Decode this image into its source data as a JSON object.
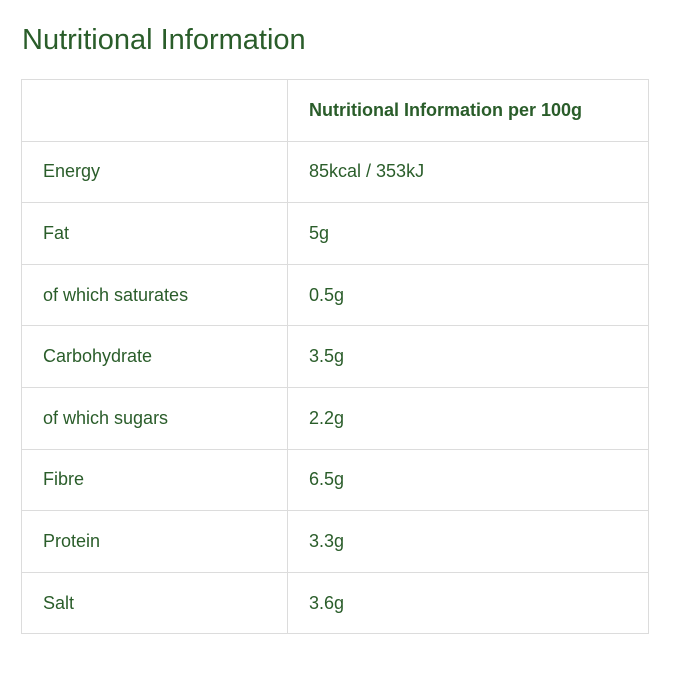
{
  "header": {
    "title": "Nutritional Information"
  },
  "table": {
    "column_header": "Nutritional Information per 100g",
    "rows": [
      [
        "Energy",
        "85kcal / 353kJ"
      ],
      [
        "Fat",
        "5g"
      ],
      [
        "of which saturates",
        "0.5g"
      ],
      [
        "Carbohydrate",
        "3.5g"
      ],
      [
        "of which sugars",
        "2.2g"
      ],
      [
        "Fibre",
        "6.5g"
      ],
      [
        "Protein",
        "3.3g"
      ],
      [
        "Salt",
        "3.6g"
      ]
    ]
  }
}
